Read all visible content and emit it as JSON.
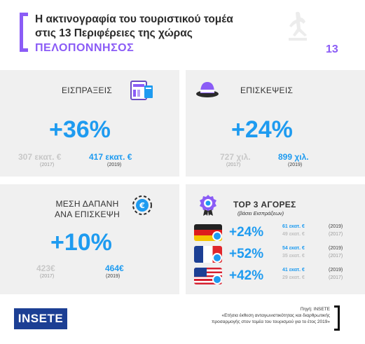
{
  "header": {
    "title_line1": "Η ακτινογραφία του τουριστικού τομέα",
    "title_line2": "στις 13 Περιφέρειες της χώρας",
    "region": "ΠΕΛΟΠΟΝΝΗΣΟΣ",
    "number": "13",
    "accent_color": "#8b5cf6",
    "region_icon": "statue-silhouette-icon"
  },
  "receipts": {
    "title": "ΕΙΣΠΡΑΞΕΙΣ",
    "icon": "card-payment-icon",
    "change": "+36%",
    "old_value": "307 εκατ. €",
    "old_year": "(2017)",
    "new_value": "417 εκατ. €",
    "new_year": "(2019)"
  },
  "visits": {
    "title": "ΕΠΙΣΚΕΨΕΙΣ",
    "icon": "hat-icon",
    "change": "+24%",
    "old_value": "727 χιλ.",
    "old_year": "(2017)",
    "new_value": "899 χιλ.",
    "new_year": "(2019)"
  },
  "spending": {
    "title_line1": "ΜΕΣΗ ΔΑΠΑΝΗ",
    "title_line2": "ΑΝΑ ΕΠΙΣΚΕΨΗ",
    "icon": "euro-coin-icon",
    "change": "+10%",
    "old_value": "423€",
    "old_year": "(2017)",
    "new_value": "464€",
    "new_year": "(2019)"
  },
  "markets": {
    "title": "TOP 3 ΑΓΟΡΕΣ",
    "subtitle": "(βάσει Εισπράξεων)",
    "icon": "medal-icon",
    "rows": [
      {
        "flag": "germany-flag",
        "change": "+24%",
        "v2019": "61 εκατ. €",
        "v2017": "49 εκατ. €",
        "y2019": "(2019)",
        "y2017": "(2017)"
      },
      {
        "flag": "france-flag",
        "change": "+52%",
        "v2019": "54 εκατ. €",
        "v2017": "35 εκατ. €",
        "y2019": "(2019)",
        "y2017": "(2017)"
      },
      {
        "flag": "usa-flag",
        "change": "+42%",
        "v2019": "41 εκατ. €",
        "v2017": "29 εκατ. €",
        "y2019": "(2019)",
        "y2017": "(2017)"
      }
    ]
  },
  "footer": {
    "logo": "INSETE",
    "source_line1": "Πηγή: INSETE",
    "source_line2": "«Ετήσια έκθεση ανταγωνιστικότητας και διαρθρωτικής",
    "source_line3": "προσαρμογής στον τομέα του τουρισμού για το έτος 2019»"
  }
}
